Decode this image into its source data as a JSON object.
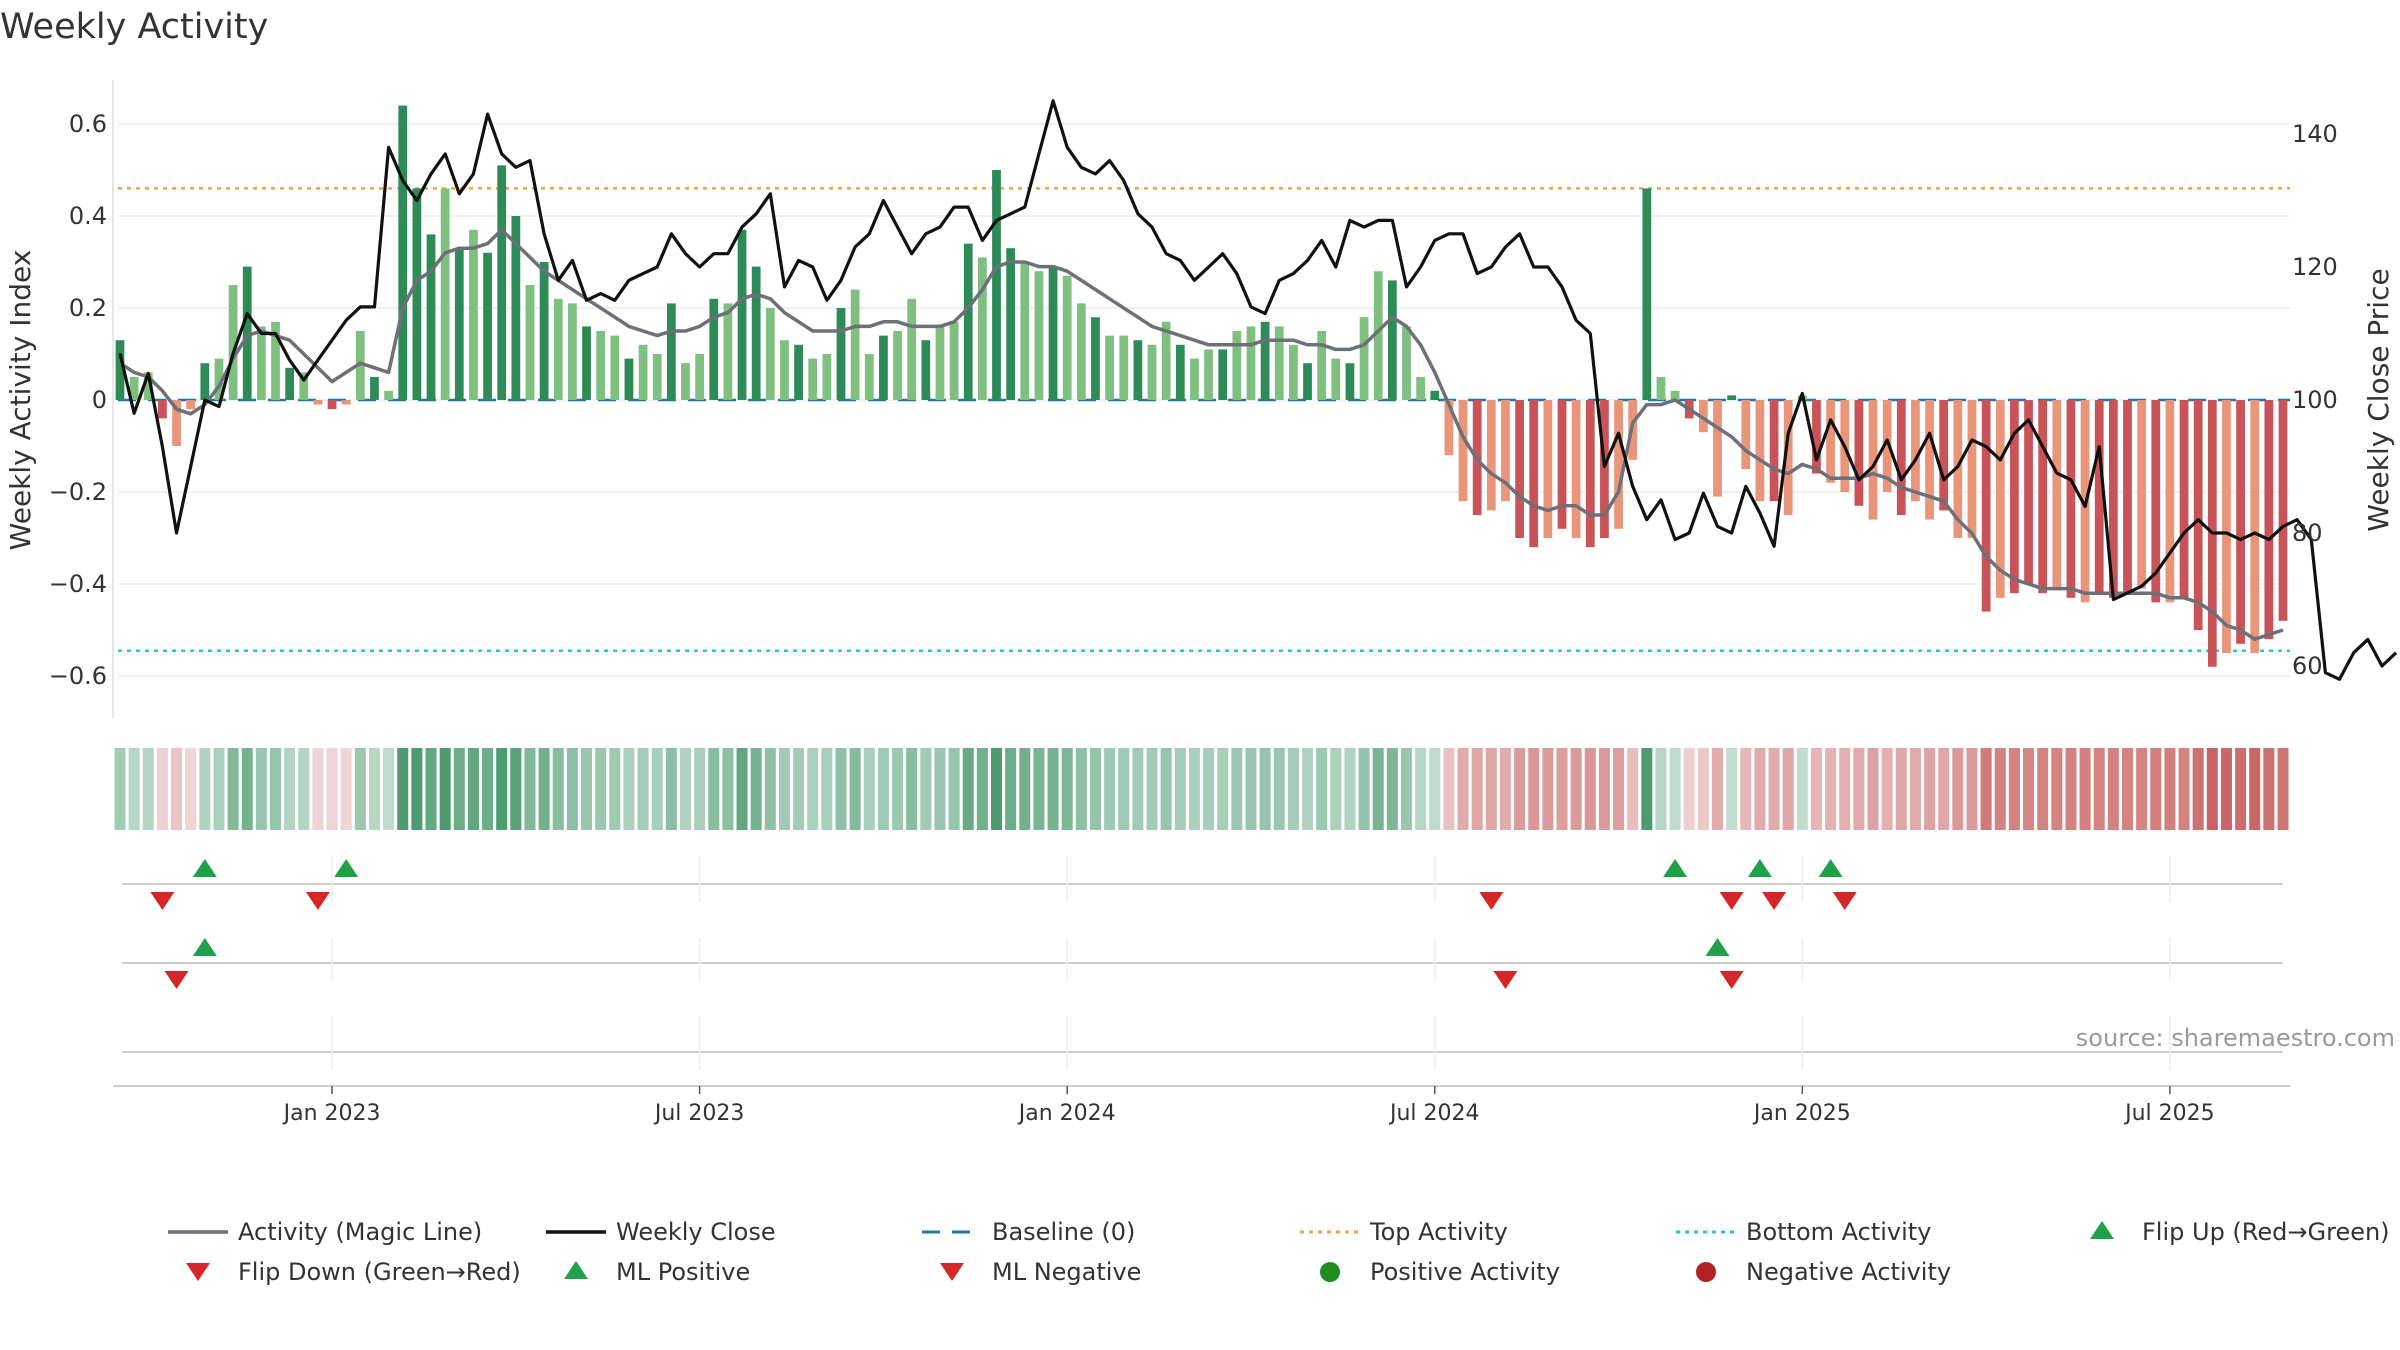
{
  "chart_data": {
    "type": "bar",
    "title": "Weekly Activity",
    "ylabel": "Weekly Activity Index",
    "y2label": "Weekly Close Price",
    "ylim": [
      -0.69,
      0.69
    ],
    "y2lim": [
      55.9,
      149.4
    ],
    "y_ticks": [
      {
        "v": 0.6,
        "label": "0.6"
      },
      {
        "v": 0.4,
        "label": "0.4"
      },
      {
        "v": 0.2,
        "label": "0.2"
      },
      {
        "v": 0,
        "label": "0"
      },
      {
        "v": -0.2,
        "label": "−0.2"
      },
      {
        "v": -0.4,
        "label": "−0.4"
      },
      {
        "v": -0.6,
        "label": "−0.6"
      }
    ],
    "y2_ticks": [
      {
        "v": 140,
        "label": "140"
      },
      {
        "v": 120,
        "label": "120"
      },
      {
        "v": 100,
        "label": "100"
      },
      {
        "v": 80,
        "label": "80"
      },
      {
        "v": 60,
        "label": "60"
      }
    ],
    "x_ticks": [
      {
        "week": 15,
        "label": "Jan 2023"
      },
      {
        "week": 41,
        "label": "Jul 2023"
      },
      {
        "week": 67,
        "label": "Jan 2024"
      },
      {
        "week": 93,
        "label": "Jul 2024"
      },
      {
        "week": 119,
        "label": "Jan 2025"
      },
      {
        "week": 145,
        "label": "Jul 2025"
      }
    ],
    "top_activity": 0.46,
    "bottom_activity": -0.545,
    "baseline": 0,
    "activity": [
      0.13,
      0.05,
      0.06,
      -0.04,
      -0.1,
      -0.02,
      0.08,
      0.09,
      0.25,
      0.29,
      0.16,
      0.17,
      0.07,
      0.06,
      -0.01,
      -0.02,
      -0.01,
      0.15,
      0.05,
      0.02,
      0.64,
      0.46,
      0.36,
      0.46,
      0.33,
      0.37,
      0.32,
      0.51,
      0.4,
      0.25,
      0.3,
      0.22,
      0.21,
      0.16,
      0.15,
      0.14,
      0.09,
      0.12,
      0.1,
      0.21,
      0.08,
      0.1,
      0.22,
      0.21,
      0.37,
      0.29,
      0.2,
      0.13,
      0.12,
      0.09,
      0.1,
      0.2,
      0.24,
      0.1,
      0.14,
      0.15,
      0.22,
      0.13,
      0.16,
      0.17,
      0.34,
      0.31,
      0.5,
      0.33,
      0.3,
      0.28,
      0.29,
      0.27,
      0.21,
      0.18,
      0.14,
      0.14,
      0.13,
      0.12,
      0.17,
      0.12,
      0.09,
      0.11,
      0.11,
      0.15,
      0.16,
      0.17,
      0.16,
      0.12,
      0.08,
      0.15,
      0.09,
      0.08,
      0.18,
      0.28,
      0.26,
      0.16,
      0.05,
      0.02,
      -0.12,
      -0.22,
      -0.25,
      -0.24,
      -0.22,
      -0.3,
      -0.32,
      -0.3,
      -0.28,
      -0.3,
      -0.32,
      -0.3,
      -0.28,
      -0.13,
      0.46,
      0.05,
      0.02,
      -0.04,
      -0.07,
      -0.21,
      0.01,
      -0.15,
      -0.22,
      -0.22,
      -0.25,
      0.01,
      -0.16,
      -0.18,
      -0.2,
      -0.23,
      -0.26,
      -0.2,
      -0.25,
      -0.22,
      -0.26,
      -0.24,
      -0.3,
      -0.3,
      -0.46,
      -0.43,
      -0.42,
      -0.4,
      -0.42,
      -0.41,
      -0.43,
      -0.44,
      -0.42,
      -0.43,
      -0.42,
      -0.41,
      -0.44,
      -0.44,
      -0.43,
      -0.5,
      -0.58,
      -0.55,
      -0.53,
      -0.55,
      -0.52,
      -0.48
    ],
    "magic_line": [
      0.08,
      0.06,
      0.05,
      0.02,
      -0.02,
      -0.03,
      -0.01,
      0.03,
      0.09,
      0.14,
      0.15,
      0.14,
      0.13,
      0.1,
      0.07,
      0.04,
      0.06,
      0.08,
      0.07,
      0.06,
      0.2,
      0.26,
      0.28,
      0.32,
      0.33,
      0.33,
      0.34,
      0.37,
      0.34,
      0.31,
      0.28,
      0.26,
      0.24,
      0.22,
      0.2,
      0.18,
      0.16,
      0.15,
      0.14,
      0.15,
      0.15,
      0.16,
      0.18,
      0.19,
      0.22,
      0.23,
      0.22,
      0.19,
      0.17,
      0.15,
      0.15,
      0.15,
      0.16,
      0.16,
      0.17,
      0.17,
      0.16,
      0.16,
      0.16,
      0.17,
      0.2,
      0.24,
      0.29,
      0.3,
      0.3,
      0.29,
      0.29,
      0.28,
      0.26,
      0.24,
      0.22,
      0.2,
      0.18,
      0.16,
      0.15,
      0.14,
      0.13,
      0.12,
      0.12,
      0.12,
      0.12,
      0.13,
      0.13,
      0.13,
      0.12,
      0.12,
      0.11,
      0.11,
      0.12,
      0.15,
      0.18,
      0.16,
      0.12,
      0.06,
      -0.01,
      -0.08,
      -0.13,
      -0.16,
      -0.18,
      -0.21,
      -0.23,
      -0.24,
      -0.23,
      -0.23,
      -0.25,
      -0.25,
      -0.2,
      -0.05,
      -0.01,
      -0.01,
      0.0,
      -0.02,
      -0.04,
      -0.06,
      -0.08,
      -0.11,
      -0.13,
      -0.15,
      -0.16,
      -0.14,
      -0.15,
      -0.17,
      -0.17,
      -0.17,
      -0.16,
      -0.17,
      -0.19,
      -0.2,
      -0.21,
      -0.22,
      -0.26,
      -0.29,
      -0.34,
      -0.37,
      -0.39,
      -0.4,
      -0.41,
      -0.41,
      -0.41,
      -0.42,
      -0.42,
      -0.42,
      -0.42,
      -0.42,
      -0.42,
      -0.43,
      -0.43,
      -0.44,
      -0.46,
      -0.49,
      -0.5,
      -0.52,
      -0.51,
      -0.5
    ],
    "weekly_close": [
      107,
      98,
      104,
      93,
      80,
      90,
      100,
      99,
      107,
      113,
      110,
      110,
      106,
      103,
      106,
      109,
      112,
      114,
      114,
      138,
      133,
      130,
      134,
      137,
      131,
      134,
      143,
      137,
      135,
      136,
      125,
      118,
      121,
      115,
      116,
      115,
      118,
      119,
      120,
      125,
      122,
      120,
      122,
      122,
      126,
      128,
      131,
      117,
      121,
      120,
      115,
      118,
      123,
      125,
      130,
      126,
      122,
      125,
      126,
      129,
      129,
      124,
      127,
      128,
      129,
      137,
      145,
      138,
      135,
      134,
      136,
      133,
      128,
      126,
      122,
      121,
      118,
      120,
      122,
      119,
      114,
      113,
      118,
      119,
      121,
      124,
      120,
      127,
      126,
      127,
      127,
      117,
      120,
      124,
      125,
      125,
      119,
      120,
      123,
      125,
      120,
      120,
      117,
      112,
      110,
      90,
      95,
      87,
      82,
      85,
      79,
      80,
      86,
      81,
      80,
      87,
      83,
      78,
      95,
      101,
      91,
      97,
      93,
      88,
      90,
      94,
      88,
      91,
      95,
      88,
      90,
      94,
      93,
      91,
      95,
      97,
      93,
      89,
      88,
      84,
      93,
      70,
      71,
      72,
      74,
      77,
      80,
      82,
      80,
      80,
      79,
      80,
      79,
      81,
      82,
      79,
      59,
      58,
      62,
      64,
      60,
      62
    ]
  },
  "signals": {
    "flip_up_weeks": [
      6,
      16,
      110,
      116,
      121
    ],
    "flip_down_weeks": [
      3,
      14,
      97,
      114,
      117,
      122
    ],
    "ml_positive_weeks": [
      6,
      113
    ],
    "ml_negative_weeks": [
      4,
      98,
      114
    ]
  },
  "source_label": "source: sharemaestro.com",
  "legend": [
    {
      "label": "Activity (Magic Line)",
      "marker": "line-gray"
    },
    {
      "label": "Weekly Close",
      "marker": "line-black"
    },
    {
      "label": "Baseline (0)",
      "marker": "dash-blue"
    },
    {
      "label": "Top Activity",
      "marker": "dot-orange"
    },
    {
      "label": "Bottom Activity",
      "marker": "dot-cyan"
    },
    {
      "label": "Flip Up (Red→Green)",
      "marker": "triangle-up-green"
    },
    {
      "label": "Flip Down (Green→Red)",
      "marker": "triangle-down-red"
    },
    {
      "label": "ML Positive",
      "marker": "triangle-up-green"
    },
    {
      "label": "ML Negative",
      "marker": "triangle-down-red"
    },
    {
      "label": "Positive Activity",
      "marker": "circle-green"
    },
    {
      "label": "Negative Activity",
      "marker": "circle-red"
    }
  ],
  "colors": {
    "pos_dark": "#2e8b57",
    "pos_light": "#7fbf7f",
    "neg_dark": "#c8545a",
    "neg_light": "#e9957a",
    "magic_line": "#6e7079",
    "close": "#111111",
    "baseline": "#1f77b4",
    "top": "#f0a050",
    "bottom": "#2ec4cf",
    "flip_up": "#21a04a",
    "flip_down": "#d62728"
  }
}
